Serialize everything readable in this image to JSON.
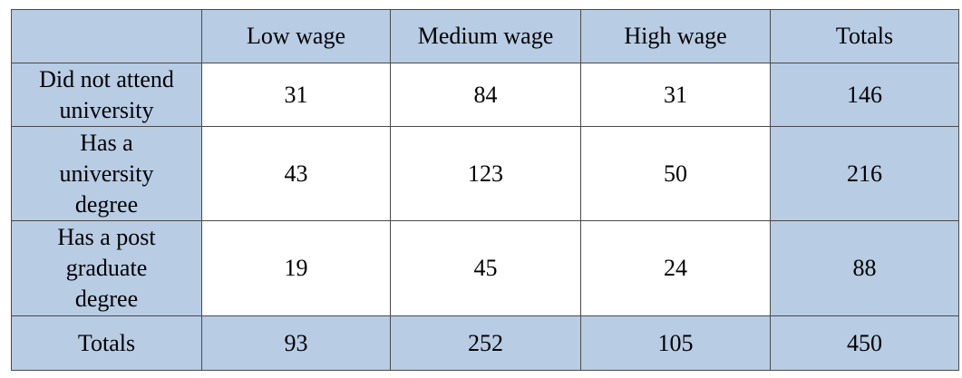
{
  "table": {
    "header": [
      "Low wage",
      "Medium wage",
      "High wage",
      "Totals"
    ],
    "rows": [
      {
        "label": [
          "Did not attend",
          "university"
        ],
        "cells": [
          31,
          84,
          31,
          146
        ]
      },
      {
        "label": [
          "Has a",
          "university",
          "degree"
        ],
        "cells": [
          43,
          123,
          50,
          216
        ]
      },
      {
        "label": [
          "Has a post",
          "graduate",
          "degree"
        ],
        "cells": [
          19,
          45,
          24,
          88
        ]
      }
    ],
    "totals": {
      "label": [
        "Totals"
      ],
      "cells": [
        93,
        252,
        105,
        450
      ]
    }
  }
}
